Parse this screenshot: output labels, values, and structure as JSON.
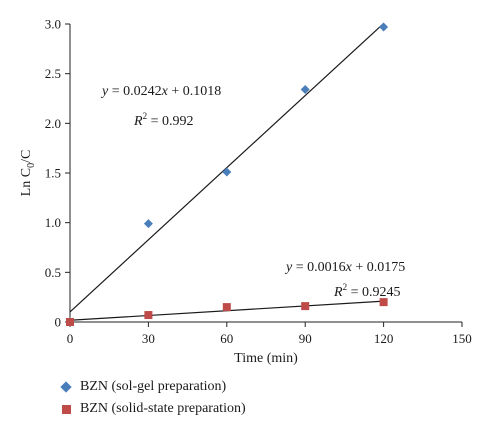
{
  "chart_data": {
    "type": "scatter",
    "xlabel": "Time (min)",
    "ylabel": "Ln C0/C",
    "ylabel_parts": {
      "main": "Ln C",
      "sub": "0",
      "tail": "/C"
    },
    "xlim": [
      0,
      150
    ],
    "ylim": [
      0,
      3.0
    ],
    "x_ticks": [
      "0",
      "30",
      "60",
      "90",
      "120",
      "150"
    ],
    "y_ticks": [
      "0",
      "0.5",
      "1.0",
      "1.5",
      "2.0",
      "2.5",
      "3.0"
    ],
    "grid": false,
    "legend_placement": "bottom",
    "series": [
      {
        "name": "BZN (sol-gel preparation)",
        "marker": "diamond",
        "color": "#4a7ebb",
        "x": [
          0,
          30,
          60,
          90,
          120
        ],
        "y": [
          0,
          0.99,
          1.51,
          2.34,
          2.97
        ],
        "fit": {
          "slope": 0.0242,
          "intercept": 0.1018,
          "x_range": [
            0,
            120
          ]
        },
        "equation": {
          "lhs": "y",
          "rest": " = 0.0242",
          "var": "x",
          "tail": " + 0.1018"
        },
        "r2": {
          "label": "R",
          "exp": "2",
          "value": " = 0.992"
        }
      },
      {
        "name": "BZN (solid-state preparation)",
        "marker": "square",
        "color": "#be4b48",
        "x": [
          0,
          30,
          60,
          90,
          120
        ],
        "y": [
          0,
          0.07,
          0.15,
          0.16,
          0.2
        ],
        "fit": {
          "slope": 0.0016,
          "intercept": 0.0175,
          "x_range": [
            0,
            120
          ]
        },
        "equation": {
          "lhs": "y",
          "rest": " = 0.0016",
          "var": "x",
          "tail": " + 0.0175"
        },
        "r2": {
          "label": "R",
          "exp": "2",
          "value": " = 0.9245"
        }
      }
    ]
  }
}
